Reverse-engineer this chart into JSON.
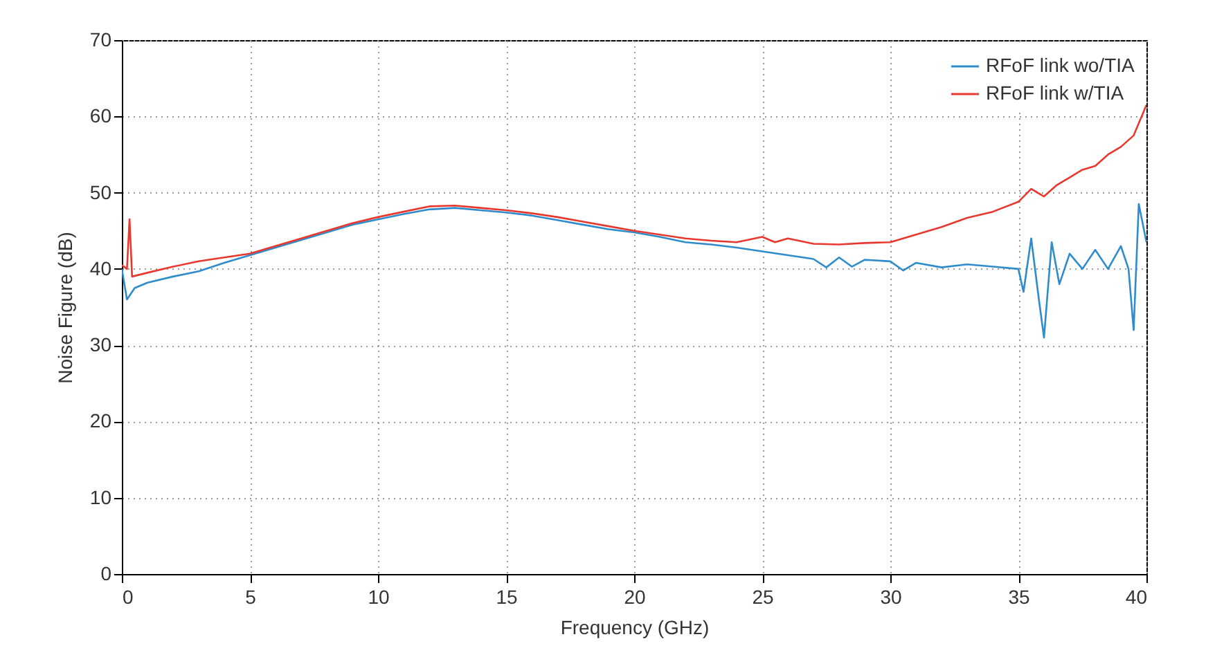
{
  "chart_data": {
    "type": "line",
    "xlabel": "Frequency (GHz)",
    "ylabel": "Noise Figure (dB)",
    "xlim": [
      0,
      40
    ],
    "xticks": [
      0,
      5,
      10,
      15,
      20,
      25,
      30,
      35,
      40
    ],
    "ylim": [
      0,
      70
    ],
    "yticks": [
      0,
      10,
      20,
      30,
      40,
      50,
      60,
      70
    ],
    "grid": true,
    "legend": "top right",
    "marker": "none",
    "line_style": "solid",
    "series": [
      {
        "name": "RFoF link wo/TIA",
        "color": "#2e8bcc",
        "x": [
          0,
          0.2,
          0.5,
          1,
          2,
          3,
          4,
          5,
          6,
          7,
          8,
          9,
          10,
          11,
          12,
          13,
          14,
          15,
          16,
          17,
          18,
          19,
          20,
          21,
          22,
          23,
          24,
          25,
          26,
          27,
          27.5,
          28,
          28.5,
          29,
          30,
          30.5,
          31,
          32,
          33,
          34,
          35,
          35.2,
          35.5,
          35.8,
          36,
          36.3,
          36.6,
          37,
          37.5,
          38,
          38.5,
          39,
          39.3,
          39.5,
          39.7,
          40
        ],
        "values": [
          40,
          36,
          37.5,
          38.2,
          39,
          39.7,
          40.8,
          41.8,
          42.8,
          43.8,
          44.8,
          45.8,
          46.5,
          47.2,
          47.8,
          48,
          47.7,
          47.4,
          47,
          46.4,
          45.8,
          45.2,
          44.8,
          44.2,
          43.5,
          43.2,
          42.8,
          42.3,
          41.8,
          41.3,
          40.2,
          41.5,
          40.3,
          41.2,
          41,
          39.8,
          40.8,
          40.2,
          40.6,
          40.3,
          40,
          37,
          44,
          36,
          31,
          43.5,
          38,
          42,
          40,
          42.5,
          40,
          43,
          40,
          32,
          48.5,
          43.5
        ]
      },
      {
        "name": "RFoF link w/TIA",
        "color": "#e8382e",
        "x": [
          0,
          0.2,
          0.3,
          0.4,
          1,
          2,
          3,
          4,
          5,
          6,
          7,
          8,
          9,
          10,
          11,
          12,
          13,
          14,
          15,
          16,
          17,
          18,
          19,
          20,
          21,
          22,
          23,
          24,
          25,
          25.5,
          26,
          27,
          28,
          29,
          30,
          31,
          32,
          33,
          34,
          35,
          35.5,
          36,
          36.5,
          37,
          37.5,
          38,
          38.5,
          39,
          39.5,
          40
        ],
        "values": [
          40.5,
          40,
          46.5,
          39,
          39.5,
          40.3,
          41,
          41.5,
          42,
          43,
          44,
          45,
          46,
          46.8,
          47.5,
          48.2,
          48.3,
          48,
          47.7,
          47.3,
          46.8,
          46.2,
          45.6,
          45,
          44.5,
          44,
          43.7,
          43.5,
          44.2,
          43.5,
          44,
          43.3,
          43.2,
          43.4,
          43.5,
          44.5,
          45.5,
          46.7,
          47.5,
          48.8,
          50.5,
          49.5,
          51,
          52,
          53,
          53.5,
          55,
          56,
          57.5,
          61.5
        ]
      }
    ]
  }
}
